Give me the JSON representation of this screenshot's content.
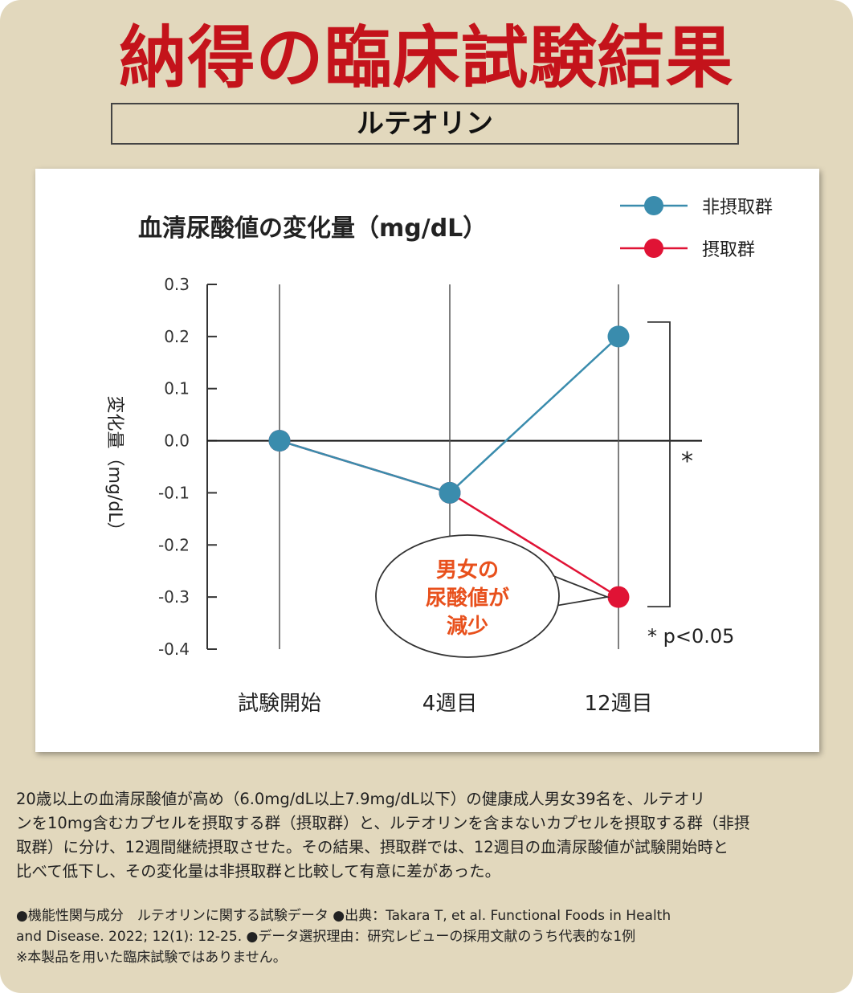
{
  "header": {
    "title": "納得の臨床試験結果",
    "subtitle": "ルテオリン"
  },
  "chart_data": {
    "type": "line",
    "title": "血清尿酸値の変化量（mg/dL）",
    "ylabel": "変化量（mg/dL）",
    "xlabel": "",
    "categories": [
      "試験開始",
      "4週目",
      "12週目"
    ],
    "ylim": [
      -0.4,
      0.3
    ],
    "yticks": [
      "0.3",
      "0.2",
      "0.1",
      "0.0",
      "-0.1",
      "-0.2",
      "-0.3",
      "-0.4"
    ],
    "yticks_values": [
      0.3,
      0.2,
      0.1,
      0.0,
      -0.1,
      -0.2,
      -0.3,
      -0.4
    ],
    "series": [
      {
        "name": "非摂取群",
        "color": "#3a8cad",
        "values": [
          0.0,
          -0.1,
          0.2
        ]
      },
      {
        "name": "摂取群",
        "color": "#e01335",
        "values": [
          0.0,
          -0.1,
          -0.3
        ]
      }
    ],
    "legend_position": "top-right",
    "grid": "vertical",
    "significance": {
      "mark": "*",
      "note": "* p<0.05"
    },
    "callout": {
      "lines": [
        "男女の",
        "尿酸値が",
        "減少"
      ],
      "color": "#e8501c"
    }
  },
  "description": {
    "lines": [
      "20歳以上の血清尿酸値が高め（6.0mg/dL以上7.9mg/dL以下）の健康成人男女39名を、ルテオリ",
      "ンを10mg含むカプセルを摂取する群（摂取群）と、ルテオリンを含まないカプセルを摂取する群（非摂",
      "取群）に分け、12週間継続摂取させた。その結果、摂取群では、12週目の血清尿酸値が試験開始時と",
      "比べて低下し、その変化量は非摂取群と比較して有意に差があった。"
    ]
  },
  "notes": {
    "lines": [
      "●機能性関与成分　ルテオリンに関する試験データ ●出典：Takara T, et al. Functional Foods in Health",
      "and Disease. 2022; 12(1): 12-25. ●データ選択理由：研究レビューの採用文献のうち代表的な1例",
      "※本製品を用いた臨床試験ではありません。"
    ]
  }
}
